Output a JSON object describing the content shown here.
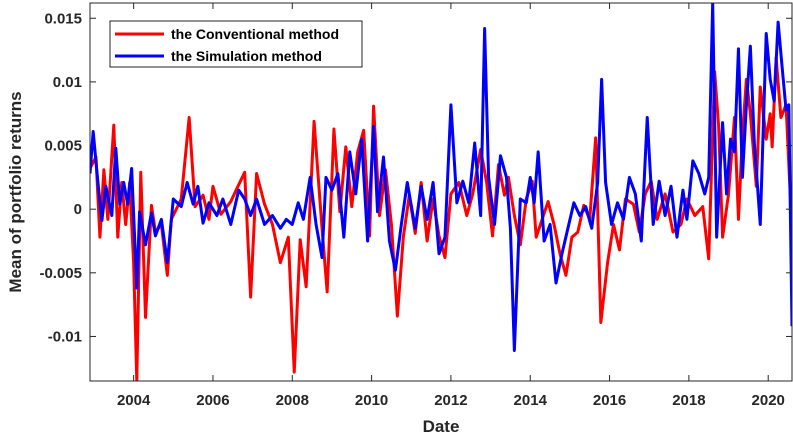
{
  "chart_data": {
    "type": "line",
    "title": "",
    "xlabel": "Date",
    "ylabel": "Mean of portfolio returns",
    "xlim": [
      2002.9,
      2020.6
    ],
    "ylim": [
      -0.0135,
      0.0162
    ],
    "x_ticks": [
      2004,
      2006,
      2008,
      2010,
      2012,
      2014,
      2016,
      2018,
      2020
    ],
    "x_tick_labels": [
      "2004",
      "2006",
      "2008",
      "2010",
      "2012",
      "2014",
      "2016",
      "2018",
      "2020"
    ],
    "y_ticks": [
      -0.01,
      -0.005,
      0,
      0.005,
      0.01,
      0.015
    ],
    "y_tick_labels": [
      "-0.01",
      "-0.005",
      "0",
      "0.005",
      "0.01",
      "0.015"
    ],
    "grid": false,
    "legend_position": "top-left",
    "series": [
      {
        "name": "the Conventional method",
        "color": "#ff0000",
        "points": [
          [
            2002.9,
            0.0032
          ],
          [
            2003.05,
            0.0041
          ],
          [
            2003.15,
            -0.0022
          ],
          [
            2003.25,
            0.0031
          ],
          [
            2003.35,
            -0.0008
          ],
          [
            2003.5,
            0.0066
          ],
          [
            2003.6,
            -0.0022
          ],
          [
            2003.7,
            0.0021
          ],
          [
            2003.8,
            -0.0012
          ],
          [
            2003.9,
            0.0021
          ],
          [
            2004.0,
            -0.0042
          ],
          [
            2004.08,
            -0.0135
          ],
          [
            2004.18,
            0.0029
          ],
          [
            2004.3,
            -0.0085
          ],
          [
            2004.45,
            0.0003
          ],
          [
            2004.55,
            -0.0018
          ],
          [
            2004.7,
            -0.0012
          ],
          [
            2004.85,
            -0.0052
          ],
          [
            2004.95,
            -0.0008
          ],
          [
            2005.2,
            0.0008
          ],
          [
            2005.4,
            0.0072
          ],
          [
            2005.55,
            0.0002
          ],
          [
            2005.75,
            0.0011
          ],
          [
            2005.9,
            -0.0008
          ],
          [
            2006.0,
            0.0018
          ],
          [
            2006.2,
            -0.0004
          ],
          [
            2006.45,
            0.0006
          ],
          [
            2006.6,
            0.0016
          ],
          [
            2006.8,
            0.0029
          ],
          [
            2006.95,
            -0.0069
          ],
          [
            2007.1,
            0.0028
          ],
          [
            2007.3,
            0.0004
          ],
          [
            2007.5,
            -0.0012
          ],
          [
            2007.7,
            -0.0042
          ],
          [
            2007.9,
            -0.0022
          ],
          [
            2008.05,
            -0.0128
          ],
          [
            2008.2,
            -0.0024
          ],
          [
            2008.35,
            -0.0061
          ],
          [
            2008.55,
            0.0069
          ],
          [
            2008.75,
            -0.0015
          ],
          [
            2008.88,
            -0.0065
          ],
          [
            2009.05,
            0.0063
          ],
          [
            2009.2,
            -0.0002
          ],
          [
            2009.35,
            0.0049
          ],
          [
            2009.5,
            0.0002
          ],
          [
            2009.65,
            0.0045
          ],
          [
            2009.8,
            0.0062
          ],
          [
            2009.95,
            -0.0021
          ],
          [
            2010.05,
            0.0081
          ],
          [
            2010.2,
            -0.0005
          ],
          [
            2010.35,
            0.0031
          ],
          [
            2010.5,
            -0.0012
          ],
          [
            2010.65,
            -0.0084
          ],
          [
            2010.8,
            -0.0022
          ],
          [
            2010.95,
            0.0011
          ],
          [
            2011.1,
            -0.0019
          ],
          [
            2011.25,
            0.0021
          ],
          [
            2011.4,
            -0.0025
          ],
          [
            2011.55,
            0.0008
          ],
          [
            2011.7,
            -0.0021
          ],
          [
            2011.85,
            -0.0038
          ],
          [
            2012.0,
            0.0012
          ],
          [
            2012.2,
            0.0021
          ],
          [
            2012.4,
            -0.0005
          ],
          [
            2012.55,
            0.0012
          ],
          [
            2012.75,
            0.0047
          ],
          [
            2012.9,
            0.0021
          ],
          [
            2013.05,
            -0.0021
          ],
          [
            2013.2,
            0.0035
          ],
          [
            2013.35,
            0.0011
          ],
          [
            2013.45,
            0.0025
          ],
          [
            2013.6,
            -0.0005
          ],
          [
            2013.75,
            -0.0028
          ],
          [
            2013.9,
            0.0008
          ],
          [
            2014.05,
            0.0022
          ],
          [
            2014.15,
            -0.0022
          ],
          [
            2014.3,
            -0.0008
          ],
          [
            2014.45,
            0.0006
          ],
          [
            2014.6,
            -0.0012
          ],
          [
            2014.75,
            -0.0035
          ],
          [
            2014.9,
            -0.0052
          ],
          [
            2015.05,
            -0.0022
          ],
          [
            2015.2,
            -0.0018
          ],
          [
            2015.35,
            0.0003
          ],
          [
            2015.5,
            -0.0008
          ],
          [
            2015.65,
            0.0056
          ],
          [
            2015.78,
            -0.0089
          ],
          [
            2015.95,
            -0.0042
          ],
          [
            2016.1,
            -0.0012
          ],
          [
            2016.25,
            -0.0032
          ],
          [
            2016.4,
            0.0008
          ],
          [
            2016.6,
            0.0004
          ],
          [
            2016.75,
            -0.0018
          ],
          [
            2016.9,
            0.0012
          ],
          [
            2017.05,
            0.0022
          ],
          [
            2017.2,
            -0.0008
          ],
          [
            2017.4,
            0.0012
          ],
          [
            2017.6,
            -0.0018
          ],
          [
            2017.8,
            -0.0012
          ],
          [
            2017.95,
            0.0008
          ],
          [
            2018.15,
            -0.0005
          ],
          [
            2018.35,
            0.0002
          ],
          [
            2018.5,
            -0.0039
          ],
          [
            2018.65,
            0.0108
          ],
          [
            2018.75,
            0.0065
          ],
          [
            2018.85,
            -0.0022
          ],
          [
            2019.0,
            0.0012
          ],
          [
            2019.15,
            0.0072
          ],
          [
            2019.25,
            -0.0008
          ],
          [
            2019.35,
            0.0058
          ],
          [
            2019.45,
            0.0102
          ],
          [
            2019.55,
            0.0075
          ],
          [
            2019.7,
            0.0018
          ],
          [
            2019.8,
            0.0096
          ],
          [
            2019.95,
            0.0055
          ],
          [
            2020.05,
            0.0075
          ],
          [
            2020.1,
            0.0049
          ],
          [
            2020.2,
            0.0119
          ],
          [
            2020.32,
            0.0072
          ],
          [
            2020.45,
            0.0082
          ],
          [
            2020.55,
            0.0015
          ],
          [
            2020.6,
            -0.0005
          ]
        ]
      },
      {
        "name": "the Simulation method",
        "color": "#0000ff",
        "points": [
          [
            2002.9,
            0.0028
          ],
          [
            2002.98,
            0.0061
          ],
          [
            2003.1,
            0.0021
          ],
          [
            2003.2,
            -0.0009
          ],
          [
            2003.3,
            0.0018
          ],
          [
            2003.45,
            -0.0005
          ],
          [
            2003.55,
            0.0048
          ],
          [
            2003.65,
            0.0004
          ],
          [
            2003.75,
            0.0021
          ],
          [
            2003.85,
            0.0004
          ],
          [
            2003.95,
            0.0032
          ],
          [
            2004.08,
            -0.0062
          ],
          [
            2004.15,
            -0.0002
          ],
          [
            2004.3,
            -0.0028
          ],
          [
            2004.45,
            -0.0003
          ],
          [
            2004.55,
            -0.0021
          ],
          [
            2004.7,
            -0.0008
          ],
          [
            2004.85,
            -0.0042
          ],
          [
            2005.0,
            0.0008
          ],
          [
            2005.2,
            0.0002
          ],
          [
            2005.35,
            0.0021
          ],
          [
            2005.5,
            0.0004
          ],
          [
            2005.62,
            0.0018
          ],
          [
            2005.75,
            -0.0011
          ],
          [
            2005.9,
            0.0005
          ],
          [
            2006.1,
            -0.0005
          ],
          [
            2006.25,
            0.0008
          ],
          [
            2006.45,
            -0.0012
          ],
          [
            2006.65,
            0.0015
          ],
          [
            2006.8,
            0.0008
          ],
          [
            2006.95,
            -0.0005
          ],
          [
            2007.1,
            0.0008
          ],
          [
            2007.3,
            -0.0012
          ],
          [
            2007.5,
            -0.0005
          ],
          [
            2007.7,
            -0.0015
          ],
          [
            2007.85,
            -0.0008
          ],
          [
            2008.0,
            -0.0012
          ],
          [
            2008.15,
            0.0005
          ],
          [
            2008.28,
            -0.0008
          ],
          [
            2008.45,
            0.0025
          ],
          [
            2008.6,
            -0.0012
          ],
          [
            2008.75,
            -0.0038
          ],
          [
            2008.85,
            0.0025
          ],
          [
            2009.0,
            0.0015
          ],
          [
            2009.15,
            0.0028
          ],
          [
            2009.3,
            -0.0022
          ],
          [
            2009.45,
            0.0045
          ],
          [
            2009.6,
            0.0012
          ],
          [
            2009.75,
            0.0055
          ],
          [
            2009.9,
            -0.0025
          ],
          [
            2010.05,
            0.0065
          ],
          [
            2010.15,
            -0.0002
          ],
          [
            2010.3,
            0.0041
          ],
          [
            2010.45,
            -0.0025
          ],
          [
            2010.6,
            -0.0048
          ],
          [
            2010.75,
            -0.0012
          ],
          [
            2010.9,
            0.0021
          ],
          [
            2011.1,
            -0.0015
          ],
          [
            2011.25,
            0.0018
          ],
          [
            2011.4,
            -0.0008
          ],
          [
            2011.55,
            0.0021
          ],
          [
            2011.7,
            -0.0035
          ],
          [
            2011.85,
            -0.0022
          ],
          [
            2012.0,
            0.0082
          ],
          [
            2012.15,
            0.0005
          ],
          [
            2012.3,
            0.0022
          ],
          [
            2012.45,
            0.0005
          ],
          [
            2012.6,
            0.0052
          ],
          [
            2012.75,
            -0.0005
          ],
          [
            2012.85,
            0.0142
          ],
          [
            2012.95,
            0.0025
          ],
          [
            2013.1,
            -0.0012
          ],
          [
            2013.25,
            0.0042
          ],
          [
            2013.4,
            0.0025
          ],
          [
            2013.5,
            -0.0015
          ],
          [
            2013.6,
            -0.0111
          ],
          [
            2013.75,
            0.0008
          ],
          [
            2013.9,
            0.0005
          ],
          [
            2014.0,
            0.0025
          ],
          [
            2014.1,
            0.0005
          ],
          [
            2014.2,
            0.0045
          ],
          [
            2014.35,
            -0.0025
          ],
          [
            2014.5,
            -0.0012
          ],
          [
            2014.65,
            -0.0058
          ],
          [
            2014.8,
            -0.0035
          ],
          [
            2014.95,
            -0.0015
          ],
          [
            2015.1,
            0.0005
          ],
          [
            2015.25,
            -0.0005
          ],
          [
            2015.4,
            0.0002
          ],
          [
            2015.55,
            -0.0015
          ],
          [
            2015.7,
            0.0021
          ],
          [
            2015.8,
            0.0102
          ],
          [
            2015.9,
            0.0021
          ],
          [
            2016.05,
            -0.0012
          ],
          [
            2016.2,
            0.0005
          ],
          [
            2016.35,
            -0.0008
          ],
          [
            2016.5,
            0.0025
          ],
          [
            2016.65,
            0.0012
          ],
          [
            2016.8,
            -0.0025
          ],
          [
            2016.95,
            0.0072
          ],
          [
            2017.1,
            -0.0012
          ],
          [
            2017.25,
            0.0022
          ],
          [
            2017.4,
            -0.0005
          ],
          [
            2017.55,
            0.0018
          ],
          [
            2017.7,
            -0.0022
          ],
          [
            2017.85,
            0.0015
          ],
          [
            2017.95,
            -0.0008
          ],
          [
            2018.1,
            0.0038
          ],
          [
            2018.25,
            0.0028
          ],
          [
            2018.4,
            0.0012
          ],
          [
            2018.5,
            0.0025
          ],
          [
            2018.6,
            0.0162
          ],
          [
            2018.7,
            -0.0022
          ],
          [
            2018.85,
            0.0068
          ],
          [
            2018.95,
            0.0012
          ],
          [
            2019.05,
            0.0055
          ],
          [
            2019.15,
            0.0045
          ],
          [
            2019.25,
            0.0126
          ],
          [
            2019.35,
            0.0025
          ],
          [
            2019.45,
            0.0082
          ],
          [
            2019.55,
            0.0128
          ],
          [
            2019.65,
            0.0052
          ],
          [
            2019.8,
            -0.0012
          ],
          [
            2019.95,
            0.0138
          ],
          [
            2020.05,
            0.0102
          ],
          [
            2020.15,
            0.0085
          ],
          [
            2020.25,
            0.0147
          ],
          [
            2020.35,
            0.0112
          ],
          [
            2020.45,
            0.0078
          ],
          [
            2020.52,
            0.0082
          ],
          [
            2020.6,
            -0.0092
          ]
        ]
      }
    ]
  }
}
